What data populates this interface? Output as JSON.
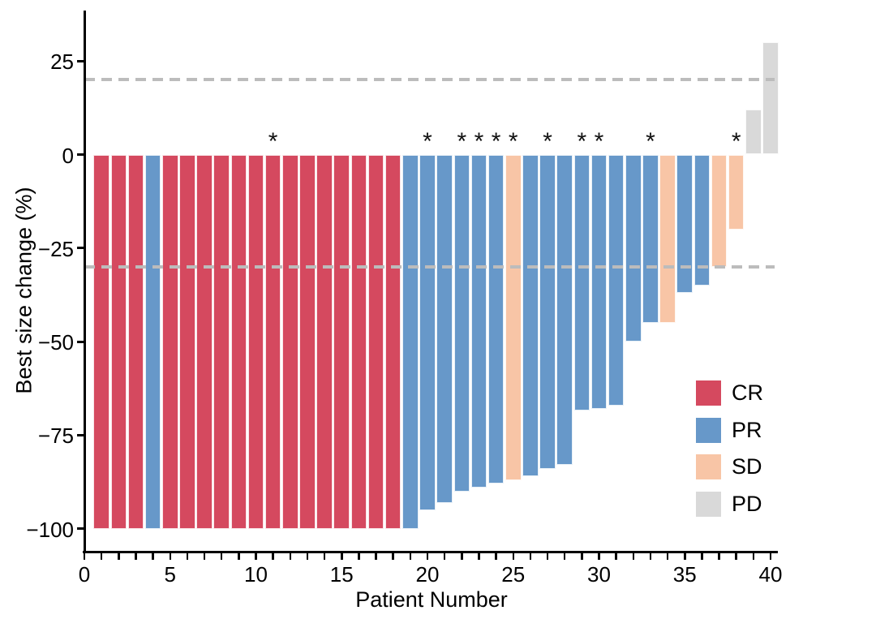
{
  "chart_data": {
    "type": "bar",
    "subtype": "waterfall",
    "title": "",
    "xlabel": "Patient Number",
    "ylabel": "Best size change (%)",
    "xlim": [
      0,
      40.5
    ],
    "ylim": [
      -106,
      36
    ],
    "grid": false,
    "x_major_ticks": [
      0,
      5,
      10,
      15,
      20,
      25,
      30,
      35,
      40
    ],
    "x_major_tick_labels": [
      "0",
      "5",
      "10",
      "15",
      "20",
      "25",
      "30",
      "35",
      "40"
    ],
    "x_minor_tick_step": 1,
    "y_ticks": [
      25,
      0,
      -25,
      -50,
      -75,
      -100
    ],
    "y_tick_labels": [
      "25",
      "0",
      "−25",
      "−50",
      "−75",
      "−100"
    ],
    "reference_lines": {
      "values": [
        20,
        -30
      ],
      "color": "#bcbcbc",
      "style": "dashed"
    },
    "annotation_symbol": "*",
    "legend": {
      "position": "right-lower",
      "items": [
        {
          "label": "CR",
          "color": "#d5495f"
        },
        {
          "label": "PR",
          "color": "#6798c9"
        },
        {
          "label": "SD",
          "color": "#f8c5a6"
        },
        {
          "label": "PD",
          "color": "#d9d9d9"
        }
      ]
    },
    "response_colors": {
      "CR": "#d5495f",
      "PR": "#6798c9",
      "SD": "#f8c5a6",
      "PD": "#d9d9d9"
    },
    "series": [
      {
        "name": "Best size change",
        "points": [
          {
            "patient": 1,
            "value": -100,
            "response": "CR",
            "star": false
          },
          {
            "patient": 2,
            "value": -100,
            "response": "CR",
            "star": false
          },
          {
            "patient": 3,
            "value": -100,
            "response": "CR",
            "star": false
          },
          {
            "patient": 4,
            "value": -100,
            "response": "PR",
            "star": false
          },
          {
            "patient": 5,
            "value": -100,
            "response": "CR",
            "star": false
          },
          {
            "patient": 6,
            "value": -100,
            "response": "CR",
            "star": false
          },
          {
            "patient": 7,
            "value": -100,
            "response": "CR",
            "star": false
          },
          {
            "patient": 8,
            "value": -100,
            "response": "CR",
            "star": false
          },
          {
            "patient": 9,
            "value": -100,
            "response": "CR",
            "star": false
          },
          {
            "patient": 10,
            "value": -100,
            "response": "CR",
            "star": false
          },
          {
            "patient": 11,
            "value": -100,
            "response": "CR",
            "star": true
          },
          {
            "patient": 12,
            "value": -100,
            "response": "CR",
            "star": false
          },
          {
            "patient": 13,
            "value": -100,
            "response": "CR",
            "star": false
          },
          {
            "patient": 14,
            "value": -100,
            "response": "CR",
            "star": false
          },
          {
            "patient": 15,
            "value": -100,
            "response": "CR",
            "star": false
          },
          {
            "patient": 16,
            "value": -100,
            "response": "CR",
            "star": false
          },
          {
            "patient": 17,
            "value": -100,
            "response": "CR",
            "star": false
          },
          {
            "patient": 18,
            "value": -100,
            "response": "CR",
            "star": false
          },
          {
            "patient": 19,
            "value": -100,
            "response": "PR",
            "star": false
          },
          {
            "patient": 20,
            "value": -95,
            "response": "PR",
            "star": true
          },
          {
            "patient": 21,
            "value": -93,
            "response": "PR",
            "star": false
          },
          {
            "patient": 22,
            "value": -90,
            "response": "PR",
            "star": true
          },
          {
            "patient": 23,
            "value": -89,
            "response": "PR",
            "star": true
          },
          {
            "patient": 24,
            "value": -88,
            "response": "PR",
            "star": true
          },
          {
            "patient": 25,
            "value": -87,
            "response": "SD",
            "star": true
          },
          {
            "patient": 26,
            "value": -86,
            "response": "PR",
            "star": false
          },
          {
            "patient": 27,
            "value": -84,
            "response": "PR",
            "star": true
          },
          {
            "patient": 28,
            "value": -83,
            "response": "PR",
            "star": false
          },
          {
            "patient": 29,
            "value": -68.5,
            "response": "PR",
            "star": true
          },
          {
            "patient": 30,
            "value": -68,
            "response": "PR",
            "star": true
          },
          {
            "patient": 31,
            "value": -67,
            "response": "PR",
            "star": false
          },
          {
            "patient": 32,
            "value": -50,
            "response": "PR",
            "star": false
          },
          {
            "patient": 33,
            "value": -45,
            "response": "PR",
            "star": true
          },
          {
            "patient": 34,
            "value": -45,
            "response": "SD",
            "star": false
          },
          {
            "patient": 35,
            "value": -37,
            "response": "PR",
            "star": false
          },
          {
            "patient": 36,
            "value": -35,
            "response": "PR",
            "star": false
          },
          {
            "patient": 37,
            "value": -30,
            "response": "SD",
            "star": false
          },
          {
            "patient": 38,
            "value": -20,
            "response": "SD",
            "star": true
          },
          {
            "patient": 39,
            "value": 12,
            "response": "PD",
            "star": false
          },
          {
            "patient": 40,
            "value": 30,
            "response": "PD",
            "star": false
          }
        ]
      }
    ]
  }
}
